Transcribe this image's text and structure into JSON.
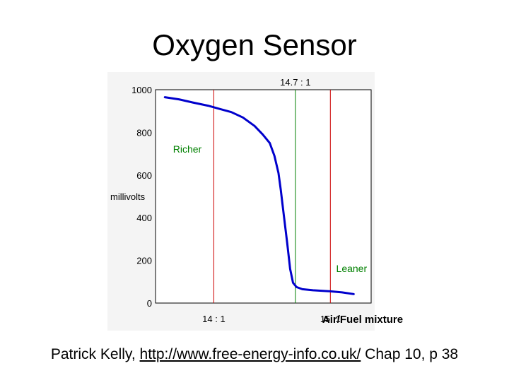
{
  "slide": {
    "title": "Oxygen Sensor"
  },
  "footer": {
    "author": "Patrick Kelly, ",
    "url": "http://www.free-energy-info.co.uk/",
    "reference": " Chap 10, p 38"
  },
  "chart_data": {
    "type": "line",
    "title": "",
    "ylabel": "millivolts",
    "xlabel": "Air/Fuel mixture",
    "ylim": [
      0,
      1000
    ],
    "xlim": [
      13.5,
      15.35
    ],
    "y_ticks": [
      {
        "value": 0,
        "label": "0"
      },
      {
        "value": 200,
        "label": "200"
      },
      {
        "value": 400,
        "label": "400"
      },
      {
        "value": 600,
        "label": "600"
      },
      {
        "value": 800,
        "label": "800"
      },
      {
        "value": 1000,
        "label": "1000"
      }
    ],
    "vlines": [
      {
        "x": 14.0,
        "label": "14 : 1",
        "color": "#cc0000",
        "label_position": "bottom"
      },
      {
        "x": 14.7,
        "label": "14.7 : 1",
        "color": "#008000",
        "label_position": "top"
      },
      {
        "x": 15.0,
        "label": "15: 1",
        "color": "#cc0000",
        "label_position": "bottom"
      }
    ],
    "annotations": [
      {
        "text": "Richer",
        "x": 13.65,
        "y": 705,
        "color": "#008000"
      },
      {
        "text": "Leaner",
        "x": 15.05,
        "y": 145,
        "color": "#008000"
      }
    ],
    "grid": false,
    "series": [
      {
        "color": "#0000cc",
        "x": [
          13.58,
          13.7,
          13.82,
          13.95,
          14.05,
          14.15,
          14.25,
          14.35,
          14.42,
          14.48,
          14.52,
          14.555,
          14.575,
          14.59,
          14.61,
          14.63,
          14.655,
          14.68,
          14.71,
          14.76,
          14.85,
          15.0,
          15.1,
          15.2
        ],
        "y": [
          965,
          955,
          940,
          925,
          910,
          895,
          870,
          830,
          790,
          750,
          690,
          610,
          530,
          460,
          370,
          280,
          160,
          95,
          75,
          65,
          60,
          55,
          50,
          42
        ]
      }
    ]
  }
}
